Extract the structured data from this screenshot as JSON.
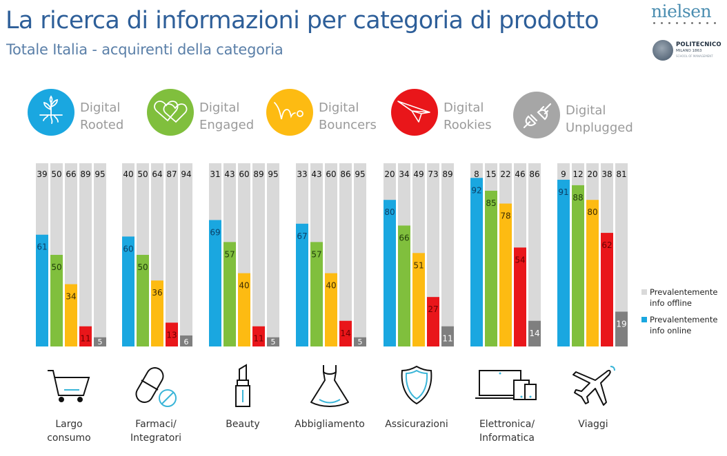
{
  "header": {
    "title": "La ricerca di informazioni per categoria di prodotto",
    "subtitle": "Totale Italia - acquirenti della categoria"
  },
  "logos": {
    "nielsen": "nielsen",
    "polimi_line1": "POLITECNICO",
    "polimi_line2": "MILANO 1863",
    "polimi_line3": "SCHOOL OF MANAGEMENT"
  },
  "segments": [
    {
      "line1": "Digital",
      "line2": "Rooted",
      "color": "#1aa7e0",
      "icon": "plant-icon"
    },
    {
      "line1": "Digital",
      "line2": "Engaged",
      "color": "#80bf3d",
      "icon": "hearts-icon"
    },
    {
      "line1": "Digital",
      "line2": "Bouncers",
      "color": "#fdbb12",
      "icon": "bounce-icon"
    },
    {
      "line1": "Digital",
      "line2": "Rookies",
      "color": "#e9161a",
      "icon": "paper-plane-icon"
    },
    {
      "line1": "Digital",
      "line2": "Unplugged",
      "color": "#a6a6a6",
      "icon": "unplugged-icon"
    }
  ],
  "legend": {
    "offline": {
      "line1": "Prevalentemente",
      "line2": "info offline",
      "color": "#d9d9d9"
    },
    "online": {
      "line1": "Prevalentemente",
      "line2": "info online",
      "color": "#1aa7e0"
    }
  },
  "categories": [
    {
      "line1": "Largo",
      "line2": "consumo",
      "icon": "shopping-cart-icon"
    },
    {
      "line1": "Farmaci/",
      "line2": "Integratori",
      "icon": "pill-icon"
    },
    {
      "line1": "Beauty",
      "line2": "",
      "icon": "lipstick-icon"
    },
    {
      "line1": "Abbigliamento",
      "line2": "",
      "icon": "dress-icon"
    },
    {
      "line1": "Assicurazioni",
      "line2": "",
      "icon": "shield-icon"
    },
    {
      "line1": "Elettronica/",
      "line2": "Informatica",
      "icon": "devices-icon"
    },
    {
      "line1": "Viaggi",
      "line2": "",
      "icon": "airplane-icon"
    }
  ],
  "chart_data": {
    "type": "bar",
    "stacked": true,
    "title": "La ricerca di informazioni per categoria di prodotto",
    "subtitle": "Totale Italia - acquirenti della categoria",
    "unit": "%",
    "ylim": [
      0,
      100
    ],
    "categories": [
      "Largo consumo",
      "Farmaci/Integratori",
      "Beauty",
      "Abbigliamento",
      "Assicurazioni",
      "Elettronica/Informatica",
      "Viaggi"
    ],
    "segments": [
      "Digital Rooted",
      "Digital Engaged",
      "Digital Bouncers",
      "Digital Rookies",
      "Digital Unplugged"
    ],
    "series": [
      {
        "name": "Prevalentemente info online",
        "values": [
          [
            61,
            50,
            34,
            11,
            5
          ],
          [
            60,
            50,
            36,
            13,
            6
          ],
          [
            69,
            57,
            40,
            11,
            5
          ],
          [
            67,
            57,
            40,
            14,
            5
          ],
          [
            80,
            66,
            51,
            27,
            11
          ],
          [
            92,
            85,
            78,
            54,
            14
          ],
          [
            91,
            88,
            80,
            62,
            19
          ]
        ]
      },
      {
        "name": "Prevalentemente info offline",
        "values": [
          [
            39,
            50,
            66,
            89,
            95
          ],
          [
            40,
            50,
            64,
            87,
            94
          ],
          [
            31,
            43,
            60,
            89,
            95
          ],
          [
            33,
            43,
            60,
            86,
            95
          ],
          [
            20,
            34,
            49,
            73,
            89
          ],
          [
            8,
            15,
            22,
            46,
            86
          ],
          [
            9,
            12,
            20,
            38,
            81
          ]
        ]
      }
    ],
    "segment_colors": [
      "#1aa7e0",
      "#80bf3d",
      "#fdbb12",
      "#e9161a",
      "#7f7f7f"
    ],
    "offline_color": "#d9d9d9",
    "legend": [
      "Prevalentemente info offline",
      "Prevalentemente info online"
    ],
    "legend_position": "right",
    "grid": false
  }
}
